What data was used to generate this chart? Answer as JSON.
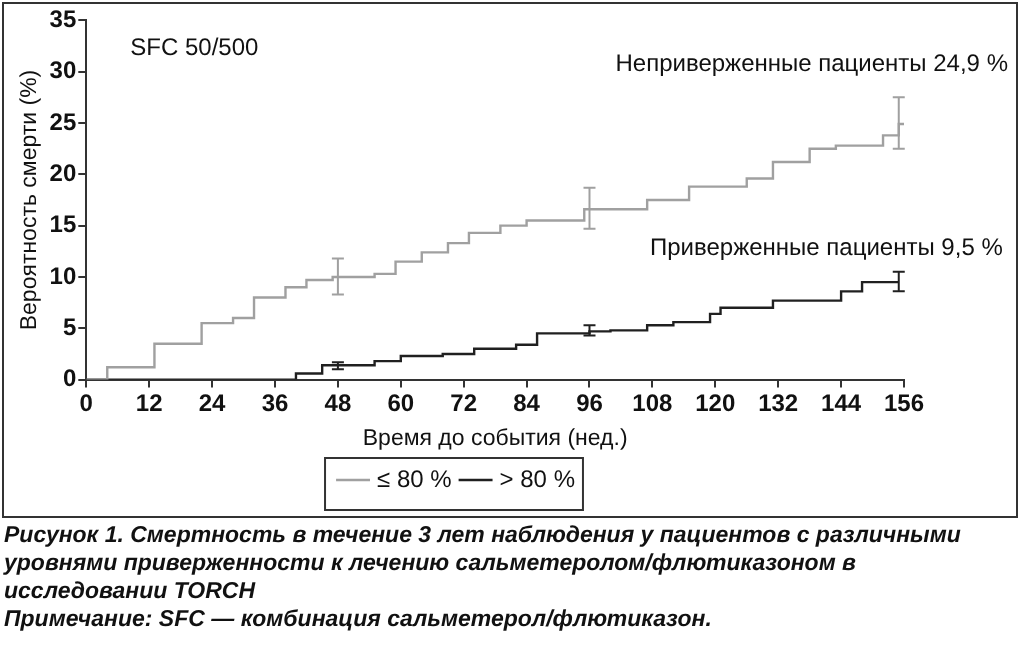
{
  "chart_data": {
    "type": "step",
    "ylabel": "Вероятность смерти (%)",
    "xlabel": "Время до события (нед.)",
    "xlim": [
      0,
      156
    ],
    "xticks": [
      0,
      12,
      24,
      36,
      48,
      60,
      72,
      84,
      96,
      108,
      120,
      132,
      144,
      156
    ],
    "ylim": [
      0,
      35
    ],
    "yticks": [
      0,
      5,
      10,
      15,
      20,
      25,
      30,
      35
    ],
    "grid": false,
    "legend": "bottom",
    "marker": "none",
    "series": [
      {
        "name": "≤ 80 %",
        "color": "#a0a0a0",
        "x": [
          0,
          4,
          13,
          22,
          28,
          32,
          38,
          42,
          47,
          48,
          55,
          59,
          64,
          69,
          73,
          79,
          84,
          95,
          96,
          107,
          115,
          126,
          131,
          138,
          143,
          152,
          155,
          156
        ],
        "values": [
          0,
          1.2,
          3.5,
          5.5,
          6,
          8,
          9,
          9.7,
          10,
          10,
          10.3,
          11.5,
          12.4,
          13.3,
          14.3,
          15,
          15.5,
          16.6,
          16.6,
          17.5,
          18.8,
          19.6,
          21.2,
          22.5,
          22.8,
          23.8,
          24.9,
          24.9
        ],
        "errors": [
          null,
          null,
          null,
          null,
          null,
          null,
          null,
          null,
          null,
          [
            8.3,
            11.8
          ],
          null,
          null,
          null,
          null,
          null,
          null,
          null,
          null,
          [
            14.7,
            18.7
          ],
          null,
          null,
          null,
          null,
          null,
          null,
          null,
          [
            22.5,
            27.5
          ],
          null
        ]
      },
      {
        "name": "> 80 %",
        "color": "#202020",
        "x": [
          0,
          40,
          45,
          48,
          55,
          60,
          68,
          74,
          82,
          86,
          96,
          100,
          107,
          112,
          119,
          121,
          131,
          144,
          148,
          155
        ],
        "values": [
          0,
          0.6,
          1.4,
          1.4,
          1.8,
          2.3,
          2.5,
          3.0,
          3.4,
          4.5,
          4.7,
          4.8,
          5.3,
          5.6,
          6.4,
          7.0,
          7.7,
          8.6,
          9.5,
          9.5
        ],
        "errors": [
          null,
          null,
          null,
          [
            1.0,
            1.7
          ],
          null,
          null,
          null,
          null,
          null,
          null,
          [
            4.3,
            5.3
          ],
          null,
          null,
          null,
          null,
          null,
          null,
          null,
          null,
          [
            8.6,
            10.5
          ]
        ]
      }
    ],
    "annotations": [
      "SFC 50/500",
      "Неприверженные пациенты 24,9 %",
      "Приверженные пациенты 9,5 %",
      "Рисунок 1. Смертность в течение 3 лет наблюдения у пациентов с различными уровнями приверженности к лечению сальметеролом/флютиказоном в исследовании TORCH",
      "Примечание: SFC — комбинация сальметерол/флютиказон."
    ]
  }
}
